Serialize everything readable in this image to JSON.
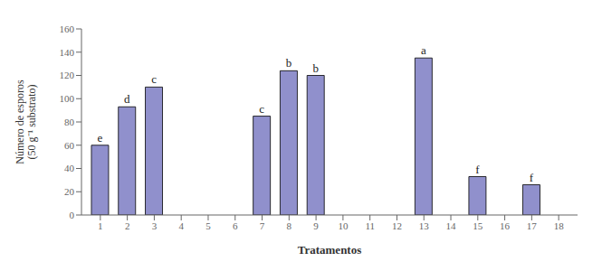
{
  "chart_data": {
    "type": "bar",
    "x": [
      1,
      2,
      3,
      7,
      8,
      9,
      13,
      15,
      17
    ],
    "values": [
      60,
      93,
      110,
      85,
      124,
      120,
      135,
      33,
      26
    ],
    "annotations": [
      "e",
      "d",
      "c",
      "c",
      "b",
      "b",
      "a",
      "f",
      "f"
    ],
    "color": "#9090cc",
    "xlim": [
      0.3,
      18.7
    ],
    "ylim": [
      0,
      160
    ],
    "xticks": [
      1,
      2,
      3,
      4,
      5,
      6,
      7,
      8,
      9,
      10,
      11,
      12,
      13,
      14,
      15,
      16,
      17,
      18
    ],
    "yticks": [
      0,
      20,
      40,
      60,
      80,
      100,
      120,
      140,
      160
    ],
    "xlabel": "Tratamentos",
    "ylabel": "Número de esporos\n(50 g⁻¹ substrato)",
    "grid": false
  }
}
